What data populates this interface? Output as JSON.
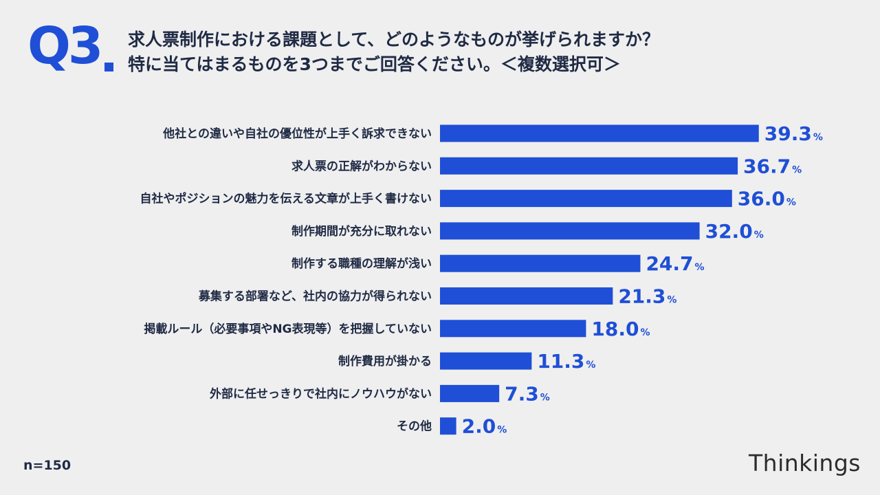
{
  "header": {
    "q_label": "Q3",
    "title_line1": "求人票制作における課題として、どのようなものが挙げられますか？",
    "title_line2": "特に当てはまるものを3つまでご回答ください。＜複数選択可＞"
  },
  "footer": {
    "n_label": "n=150",
    "brand": "Thinkings"
  },
  "colors": {
    "bar": "#1f4fd6",
    "accent": "#1f4fd6",
    "text": "#1f2a44",
    "background": "#efefef"
  },
  "chart_data": {
    "type": "bar",
    "orientation": "horizontal",
    "categories": [
      "他社との違いや自社の優位性が上手く訴求できない",
      "求人票の正解がわからない",
      "自社やポジションの魅力を伝える文章が上手く書けない",
      "制作期間が充分に取れない",
      "制作する職種の理解が浅い",
      "募集する部署など、社内の協力が得られない",
      "掲載ルール（必要事項やNG表現等）を把握していない",
      "制作費用が掛かる",
      "外部に任せっきりで社内にノウハウがない",
      "その他"
    ],
    "values": [
      39.3,
      36.7,
      36.0,
      32.0,
      24.7,
      21.3,
      18.0,
      11.3,
      7.3,
      2.0
    ],
    "unit": "%",
    "xlim": [
      0,
      45
    ],
    "grid": false,
    "legend": "none"
  }
}
